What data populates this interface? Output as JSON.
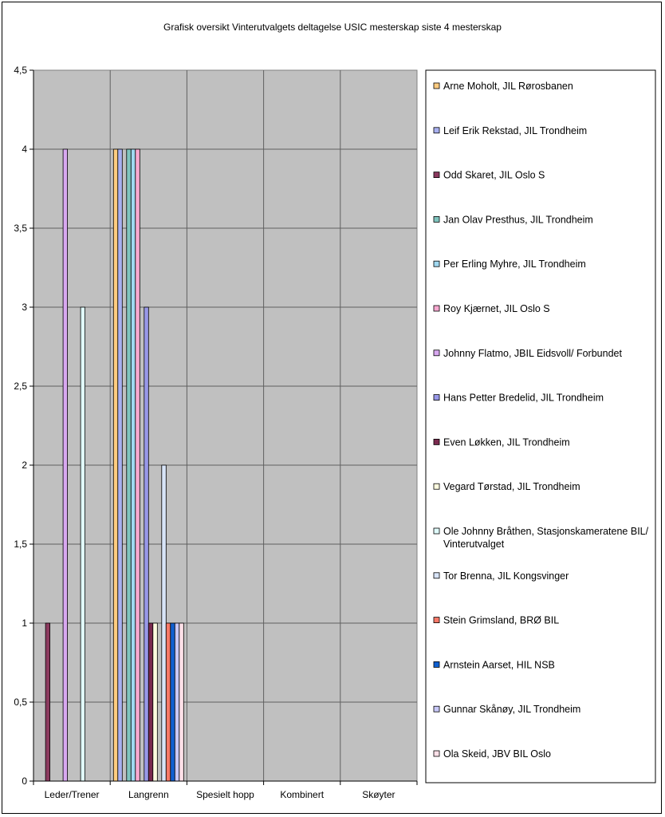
{
  "chart_data": {
    "type": "bar",
    "title": "Grafisk oversikt Vinterutvalgets deltagelse USIC mesterskap siste 4 mesterskap",
    "xlabel": "",
    "ylabel": "",
    "ylim": [
      0,
      4.5
    ],
    "yticks": [
      "0",
      "0,5",
      "1",
      "1,5",
      "2",
      "2,5",
      "3",
      "3,5",
      "4",
      "4,5"
    ],
    "grid": true,
    "legend_position": "right",
    "categories": [
      "Leder/Trener",
      "Langrenn",
      "Spesielt hopp",
      "Kombinert",
      "Skøyter"
    ],
    "series": [
      {
        "name": "Arne Moholt, JIL Rørosbanen",
        "color": "#ffcc80",
        "values": [
          0,
          4,
          0,
          0,
          0
        ]
      },
      {
        "name": "Leif Erik Rekstad, JIL Trondheim",
        "color": "#a8b0f0",
        "values": [
          0,
          4,
          0,
          0,
          0
        ]
      },
      {
        "name": "Odd Skaret, JIL Oslo S",
        "color": "#8b3a5f",
        "values": [
          1,
          0,
          0,
          0,
          0
        ]
      },
      {
        "name": "Jan Olav Presthus, JIL Trondheim",
        "color": "#7fc4be",
        "values": [
          0,
          4,
          0,
          0,
          0
        ]
      },
      {
        "name": "Per Erling Myhre, JIL Trondheim",
        "color": "#a0d8f0",
        "values": [
          0,
          4,
          0,
          0,
          0
        ]
      },
      {
        "name": "Roy Kjærnet, JIL Oslo S",
        "color": "#f8a8d0",
        "values": [
          0,
          4,
          0,
          0,
          0
        ]
      },
      {
        "name": "Johnny Flatmo, JBIL Eidsvoll/ Forbundet",
        "color": "#d8a8f0",
        "values": [
          4,
          0,
          0,
          0,
          0
        ]
      },
      {
        "name": "Hans Petter Bredelid, JIL Trondheim",
        "color": "#9898e8",
        "values": [
          0,
          3,
          0,
          0,
          0
        ]
      },
      {
        "name": "Even Løkken, JIL Trondheim",
        "color": "#7a2a4e",
        "values": [
          0,
          1,
          0,
          0,
          0
        ]
      },
      {
        "name": "Vegard Tørstad, JIL Trondheim",
        "color": "#fffde0",
        "values": [
          0,
          1,
          0,
          0,
          0
        ]
      },
      {
        "name": "Ole Johnny Bråthen, Stasjonskameratene BIL/ Vinterutvalget",
        "color": "#e0fcfc",
        "values": [
          3,
          0,
          0,
          0,
          0
        ]
      },
      {
        "name": "Tor Brenna, JIL Kongsvinger",
        "color": "#d8e4f8",
        "values": [
          0,
          2,
          0,
          0,
          0
        ]
      },
      {
        "name": "Stein Grimsland, BRØ BIL",
        "color": "#f87868",
        "values": [
          0,
          1,
          0,
          0,
          0
        ]
      },
      {
        "name": "Arnstein Aarset, HIL NSB",
        "color": "#1060d0",
        "values": [
          0,
          1,
          0,
          0,
          0
        ]
      },
      {
        "name": "Gunnar Skånøy, JIL Trondheim",
        "color": "#c8c8f8",
        "values": [
          0,
          1,
          0,
          0,
          0
        ]
      },
      {
        "name": "Ola Skeid, JBV BIL Oslo",
        "color": "#fde0e8",
        "values": [
          0,
          1,
          0,
          0,
          0
        ]
      }
    ]
  }
}
